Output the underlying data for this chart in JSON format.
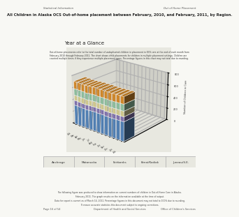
{
  "title": "All Children in Alaska OCS Out-of-home placement between February, 2010, and February, 2011, by Region.",
  "chart_title": "Year at a Glance",
  "regions": [
    "Anchrage",
    "Matanuska",
    "Fairbanks",
    "Kenai/Kodiak",
    "Juneau/S.E."
  ],
  "months": [
    "Feb",
    "Mar",
    "Apr",
    "May",
    "Jun",
    "Jul",
    "Aug",
    "Sep",
    "Oct",
    "Nov",
    "Dec",
    "Jan",
    "Feb"
  ],
  "bar_colors": [
    "#5b8fc8",
    "#9080c0",
    "#e8e0a0",
    "#a0d4b0",
    "#e89830"
  ],
  "region_values": [
    [
      320,
      318,
      315,
      312,
      318,
      322,
      319,
      321,
      317,
      315,
      318,
      320,
      322
    ],
    [
      82,
      80,
      78,
      82,
      80,
      79,
      81,
      80,
      78,
      80,
      82,
      81,
      80
    ],
    [
      88,
      90,
      92,
      88,
      90,
      91,
      89,
      90,
      92,
      90,
      88,
      89,
      90
    ],
    [
      108,
      110,
      112,
      108,
      110,
      111,
      109,
      110,
      112,
      110,
      108,
      109,
      110
    ],
    [
      120,
      118,
      115,
      122,
      120,
      119,
      121,
      120,
      118,
      120,
      122,
      121,
      120
    ]
  ],
  "y_ticks": [
    0,
    200,
    400,
    600,
    800
  ],
  "page_bg": "#f8f8f4",
  "chart_bg": "#e8e8e0",
  "table_row_colors": [
    "#e89830",
    "#a0d4b0",
    "#e8e090",
    "#78c0d0",
    "#9898c8",
    "#5878c0"
  ],
  "footer_regions": [
    "Anchrage",
    "Matanuska",
    "Fairbanks",
    "Kenai/Kodiak",
    "Juneau/S.E."
  ],
  "header_left": "Statistical Information",
  "header_right": "Out of Home Placement",
  "footer_left": "Page 16 of 54",
  "footer_center": "Department of Health and Social Services",
  "footer_right": "Office of Children's Services"
}
